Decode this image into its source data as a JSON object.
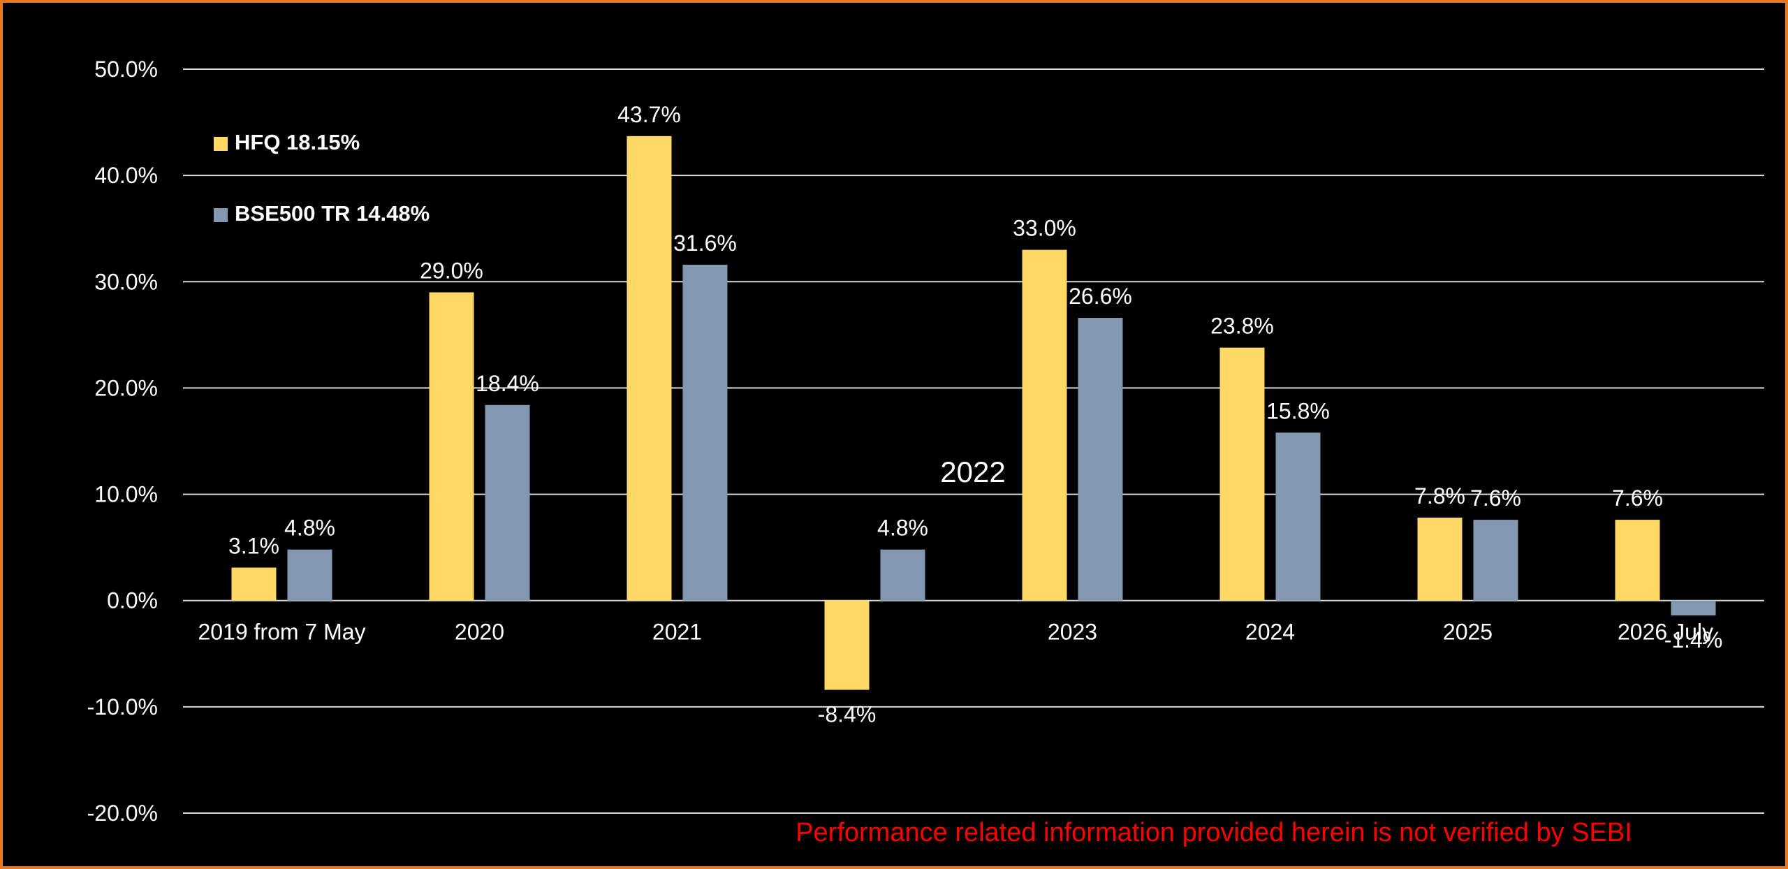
{
  "chart_data": {
    "type": "bar",
    "categories": [
      "2019 from 7 May",
      "2020",
      "2021",
      "",
      "2023",
      "2024",
      "2025",
      "2026 July"
    ],
    "series": [
      {
        "name": "HFQ 18.15%",
        "color": "#ffd966",
        "values": [
          3.1,
          29.0,
          43.7,
          -8.4,
          33.0,
          23.8,
          7.8,
          7.6
        ]
      },
      {
        "name": "BSE500 TR 14.48%",
        "color": "#8497b0",
        "values": [
          4.8,
          18.4,
          31.6,
          4.8,
          26.6,
          15.8,
          7.6,
          -1.4
        ]
      }
    ],
    "ylim": [
      -20,
      50
    ],
    "yticks": [
      "-20.0%",
      "-10.0%",
      "0.0%",
      "10.0%",
      "20.0%",
      "30.0%",
      "40.0%",
      "50.0%"
    ],
    "data_labels": [
      [
        "3.1%",
        "29.0%",
        "43.7%",
        "-8.4%",
        "33.0%",
        "23.8%",
        "7.8%",
        "7.6%"
      ],
      [
        "4.8%",
        "18.4%",
        "31.6%",
        "4.8%",
        "26.6%",
        "15.8%",
        "7.6%",
        "-1.4%"
      ]
    ],
    "annotation": "2022",
    "footnote": "Performance related information provided herein is not verified by SEBI",
    "grid": true,
    "legend_position": "top-left",
    "background": "#000000",
    "border_color": "#e87722",
    "text_color": "#ffffff",
    "footnote_color": "#ff0000"
  }
}
